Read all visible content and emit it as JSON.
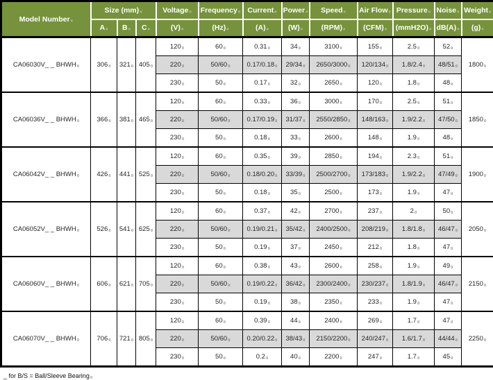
{
  "colors": {
    "header_green": "#76923C",
    "row_highlight": "#D9D9D9",
    "border_black": "#000000",
    "header_text": "#FFFFFF"
  },
  "table": {
    "header": {
      "model_number": "Model Number",
      "size_group": "Size (mm)",
      "size_cols": [
        "A",
        "B",
        "C"
      ],
      "columns": [
        {
          "label": "Voltage",
          "unit": "(V)"
        },
        {
          "label": "Frequency",
          "unit": "(Hz)"
        },
        {
          "label": "Current",
          "unit": "(A)"
        },
        {
          "label": "Power",
          "unit": "(W)"
        },
        {
          "label": "Speed",
          "unit": "(RPM)"
        },
        {
          "label": "Air Flow",
          "unit": "(CFM)"
        },
        {
          "label": "Pressure",
          "unit": "(mmH2O)"
        },
        {
          "label": "Noise",
          "unit": "dB(A)"
        },
        {
          "label": "Weight",
          "unit": "(g)"
        }
      ]
    },
    "models": [
      {
        "model": "CA06030V_ _ BHWH",
        "size": {
          "a": "306",
          "b": "321",
          "c": "405"
        },
        "weight": "1800",
        "rows": [
          {
            "voltage": "120",
            "frequency": "60",
            "current": "0.31",
            "power": "34",
            "speed": "3100",
            "airflow": "155",
            "pressure": "2.5",
            "noise": "52",
            "highlight": false
          },
          {
            "voltage": "220",
            "frequency": "50/60",
            "current": "0.17/0.18",
            "power": "29/34",
            "speed": "2650/3000",
            "airflow": "120/134",
            "pressure": "1.8/2.4",
            "noise": "48/51",
            "highlight": true
          },
          {
            "voltage": "230",
            "frequency": "50",
            "current": "0.17",
            "power": "32",
            "speed": "2650",
            "airflow": "120",
            "pressure": "1.8",
            "noise": "48",
            "highlight": false
          }
        ]
      },
      {
        "model": "CA06036V_ _ BHWH",
        "size": {
          "a": "366",
          "b": "381",
          "c": "465"
        },
        "weight": "1850",
        "rows": [
          {
            "voltage": "120",
            "frequency": "60",
            "current": "0.33",
            "power": "36",
            "speed": "3000",
            "airflow": "170",
            "pressure": "2.5",
            "noise": "51",
            "highlight": false
          },
          {
            "voltage": "220",
            "frequency": "50/60",
            "current": "0.17/0.19",
            "power": "31/37",
            "speed": "2550/2850",
            "airflow": "148/163",
            "pressure": "1.9/2.2",
            "noise": "47/50",
            "highlight": true
          },
          {
            "voltage": "230",
            "frequency": "50",
            "current": "0.18",
            "power": "33",
            "speed": "2600",
            "airflow": "148",
            "pressure": "1.9",
            "noise": "48",
            "highlight": false
          }
        ]
      },
      {
        "model": "CA06042V_ _ BHWH",
        "size": {
          "a": "426",
          "b": "441",
          "c": "525"
        },
        "weight": "1900",
        "rows": [
          {
            "voltage": "120",
            "frequency": "60",
            "current": "0.35",
            "power": "39",
            "speed": "2850",
            "airflow": "194",
            "pressure": "2.3",
            "noise": "51",
            "highlight": false
          },
          {
            "voltage": "220",
            "frequency": "50/60",
            "current": "0.18/0.20",
            "power": "33/39",
            "speed": "2500/2700",
            "airflow": "173/183",
            "pressure": "1.9/2.2",
            "noise": "47/49",
            "highlight": true
          },
          {
            "voltage": "230",
            "frequency": "50",
            "current": "0.18",
            "power": "35",
            "speed": "2500",
            "airflow": "173",
            "pressure": "1.9",
            "noise": "47",
            "highlight": false
          }
        ]
      },
      {
        "model": "CA06052V_ _ BHWH",
        "size": {
          "a": "526",
          "b": "541",
          "c": "625"
        },
        "weight": "2050",
        "rows": [
          {
            "voltage": "120",
            "frequency": "60",
            "current": "0.37",
            "power": "42",
            "speed": "2700",
            "airflow": "237",
            "pressure": "2",
            "noise": "50",
            "highlight": false
          },
          {
            "voltage": "220",
            "frequency": "50/60",
            "current": "0.19/0.21",
            "power": "35/42",
            "speed": "2400/2500",
            "airflow": "208/219",
            "pressure": "1.8/1.8",
            "noise": "46/47",
            "highlight": true
          },
          {
            "voltage": "230",
            "frequency": "50",
            "current": "0.19",
            "power": "37",
            "speed": "2450",
            "airflow": "212",
            "pressure": "1.8",
            "noise": "47",
            "highlight": false
          }
        ]
      },
      {
        "model": "CA06060V_ _ BHWH",
        "size": {
          "a": "606",
          "b": "621",
          "c": "705"
        },
        "weight": "2150",
        "rows": [
          {
            "voltage": "120",
            "frequency": "60",
            "current": "0.38",
            "power": "43",
            "speed": "2600",
            "airflow": "258",
            "pressure": "1.9",
            "noise": "49",
            "highlight": false
          },
          {
            "voltage": "220",
            "frequency": "50/60",
            "current": "0.19/0.22",
            "power": "36/42",
            "speed": "2300/2400",
            "airflow": "230/237",
            "pressure": "1.8/1.9",
            "noise": "46/47",
            "highlight": true
          },
          {
            "voltage": "230",
            "frequency": "50",
            "current": "0.19",
            "power": "38",
            "speed": "2350",
            "airflow": "233",
            "pressure": "1.9",
            "noise": "47",
            "highlight": false
          }
        ]
      },
      {
        "model": "CA06070V_ _ BHWH",
        "size": {
          "a": "706",
          "b": "721",
          "c": "805"
        },
        "weight": "2250",
        "rows": [
          {
            "voltage": "120",
            "frequency": "60",
            "current": "0.39",
            "power": "44",
            "speed": "2400",
            "airflow": "269",
            "pressure": "1.7",
            "noise": "47",
            "highlight": false
          },
          {
            "voltage": "220",
            "frequency": "50/60",
            "current": "0.20/0.22",
            "power": "38/43",
            "speed": "2150/2200",
            "airflow": "240/247",
            "pressure": "1.6/1.7",
            "noise": "44/44",
            "highlight": true
          },
          {
            "voltage": "230",
            "frequency": "50",
            "current": "0.2",
            "power": "40",
            "speed": "2200",
            "airflow": "247",
            "pressure": "1.7",
            "noise": "45",
            "highlight": false
          }
        ]
      }
    ]
  },
  "footnote": "_ for B/S = Ball/Sleeve Bearing"
}
